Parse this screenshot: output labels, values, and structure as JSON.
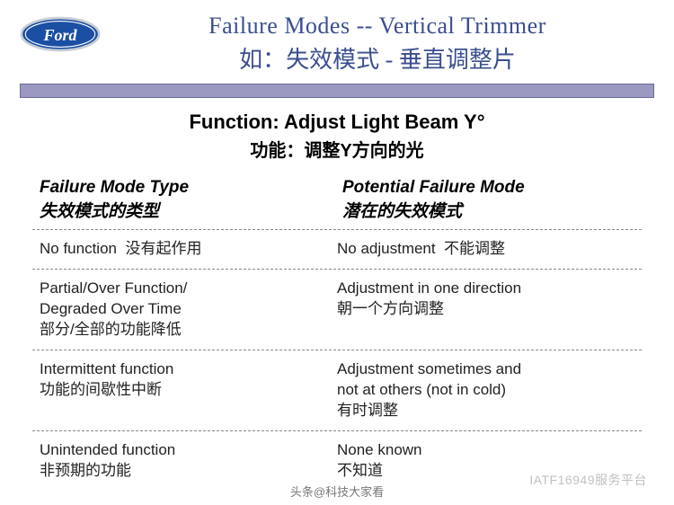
{
  "logo": {
    "brand": "Ford",
    "oval_fill": "#1b4fa3",
    "oval_stroke": "#c9cfd6",
    "text_fill": "#ffffff"
  },
  "title": {
    "en": "Failure Modes -- Vertical Trimmer",
    "zh": "如：失效模式 - 垂直调整片",
    "color": "#3b4e8f"
  },
  "divider": {
    "fill": "#9b99c1",
    "border": "#6b6a99"
  },
  "function": {
    "en": "Function: Adjust Light Beam Y°",
    "zh": "功能：调整Y方向的光"
  },
  "columns": {
    "left_en": "Failure Mode Type",
    "left_zh": "失效模式的类型",
    "right_en": "Potential Failure Mode",
    "right_zh": "潜在的失效模式"
  },
  "rows": [
    {
      "left_en": "No function",
      "left_zh": "没有起作用",
      "left_inline": true,
      "right_en": "No adjustment",
      "right_zh": "不能调整",
      "right_inline": true
    },
    {
      "left_en": "Partial/Over Function/\nDegraded Over Time",
      "left_zh": "部分/全部的功能降低",
      "left_inline": false,
      "right_en": "Adjustment in one direction",
      "right_zh": "朝一个方向调整",
      "right_inline": false
    },
    {
      "left_en": "Intermittent function",
      "left_zh": "功能的间歇性中断",
      "left_inline": false,
      "right_en": "Adjustment sometimes and\nnot at others (not in cold)",
      "right_zh": "有时调整",
      "right_inline": false
    },
    {
      "left_en": "Unintended function",
      "left_zh": "非预期的功能",
      "left_inline": false,
      "right_en": "None known",
      "right_zh": "不知道",
      "right_inline": false
    }
  ],
  "watermark": "IATF16949服务平台",
  "author_mark": "头条@科技大家看"
}
